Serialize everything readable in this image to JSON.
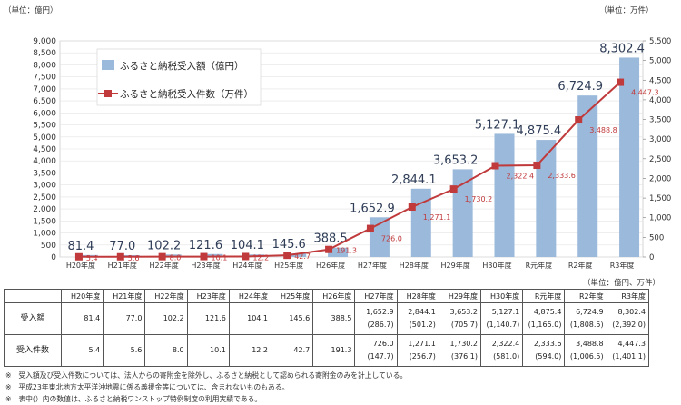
{
  "units": {
    "left_axis": "（単位：億円）",
    "right_axis": "（単位：万件）",
    "table": "（単位：億円、万件）"
  },
  "chart_data": {
    "type": "bar+line",
    "categories": [
      "H20年度",
      "H21年度",
      "H22年度",
      "H23年度",
      "H24年度",
      "H25年度",
      "H26年度",
      "H27年度",
      "H28年度",
      "H29年度",
      "H30年度",
      "R元年度",
      "R2年度",
      "R3年度"
    ],
    "series": [
      {
        "name": "ふるさと納税受入額（億円）",
        "type": "bar",
        "axis": "left",
        "color": "#9bb9da",
        "values": [
          81.4,
          77.0,
          102.2,
          121.6,
          104.1,
          145.6,
          388.5,
          1652.9,
          2844.1,
          3653.2,
          5127.1,
          4875.4,
          6724.9,
          8302.4
        ],
        "labels": [
          "81.4",
          "77.0",
          "102.2",
          "121.6",
          "104.1",
          "145.6",
          "388.5",
          "1,652.9",
          "2,844.1",
          "3,653.2",
          "5,127.1",
          "4,875.4",
          "6,724.9",
          "8,302.4"
        ]
      },
      {
        "name": "ふるさと納税受入件数（万件）",
        "type": "line",
        "axis": "right",
        "color": "#c0393b",
        "values": [
          5.4,
          5.6,
          8.0,
          10.1,
          12.2,
          42.7,
          191.3,
          726.0,
          1271.1,
          1730.2,
          2322.4,
          2333.6,
          3488.8,
          4447.3
        ],
        "labels": [
          "5.4",
          "5.6",
          "8.0",
          "10.1",
          "12.2",
          "42.7",
          "191.3",
          "726.0",
          "1,271.1",
          "1,730.2",
          "2,322.4",
          "2,333.6",
          "3,488.8",
          "4,447.3"
        ]
      }
    ],
    "y_left": {
      "range": [
        0,
        9000
      ],
      "step": 500,
      "ticks": [
        "0",
        "500",
        "1,000",
        "1,500",
        "2,000",
        "2,500",
        "3,000",
        "3,500",
        "4,000",
        "4,500",
        "5,000",
        "5,500",
        "6,000",
        "6,500",
        "7,000",
        "7,500",
        "8,000",
        "8,500",
        "9,000"
      ]
    },
    "y_right": {
      "range": [
        0,
        5500
      ],
      "step": 500,
      "ticks": [
        "0",
        "500",
        "1,000",
        "1,500",
        "2,000",
        "2,500",
        "3,000",
        "3,500",
        "4,000",
        "4,500",
        "5,000",
        "5,500"
      ]
    },
    "legend_position": "top-left"
  },
  "table": {
    "headers": [
      "H20年度",
      "H21年度",
      "H22年度",
      "H23年度",
      "H24年度",
      "H25年度",
      "H26年度",
      "H27年度",
      "H28年度",
      "H29年度",
      "H30年度",
      "R元年度",
      "R2年度",
      "R3年度"
    ],
    "rows": [
      {
        "label": "受入額",
        "cells": [
          [
            "81.4"
          ],
          [
            "77.0"
          ],
          [
            "102.2"
          ],
          [
            "121.6"
          ],
          [
            "104.1"
          ],
          [
            "145.6"
          ],
          [
            "388.5"
          ],
          [
            "1,652.9",
            "(286.7)"
          ],
          [
            "2,844.1",
            "(501.2)"
          ],
          [
            "3,653.2",
            "(705.7)"
          ],
          [
            "5,127.1",
            "(1,140.7)"
          ],
          [
            "4,875.4",
            "(1,165.0)"
          ],
          [
            "6,724.9",
            "(1,808.5)"
          ],
          [
            "8,302.4",
            "(2,392.0)"
          ]
        ]
      },
      {
        "label": "受入件数",
        "cells": [
          [
            "5.4"
          ],
          [
            "5.6"
          ],
          [
            "8.0"
          ],
          [
            "10.1"
          ],
          [
            "12.2"
          ],
          [
            "42.7"
          ],
          [
            "191.3"
          ],
          [
            "726.0",
            "(147.7)"
          ],
          [
            "1,271.1",
            "(256.7)"
          ],
          [
            "1,730.2",
            "(376.1)"
          ],
          [
            "2,322.4",
            "(581.0)"
          ],
          [
            "2,333.6",
            "(594.0)"
          ],
          [
            "3,488.8",
            "(1,006.5)"
          ],
          [
            "4,447.3",
            "(1,401.1)"
          ]
        ]
      }
    ]
  },
  "notes": [
    "※　受入額及び受入件数については、法人からの寄附金を除外し、ふるさと納税として認められる寄附金のみを計上している。",
    "※　平成23年東北地方太平洋沖地震に係る義援金等については、含まれないものもある。",
    "※　表中(）内の数値は、ふるさと納税ワンストップ特例制度の利用実績である。"
  ]
}
